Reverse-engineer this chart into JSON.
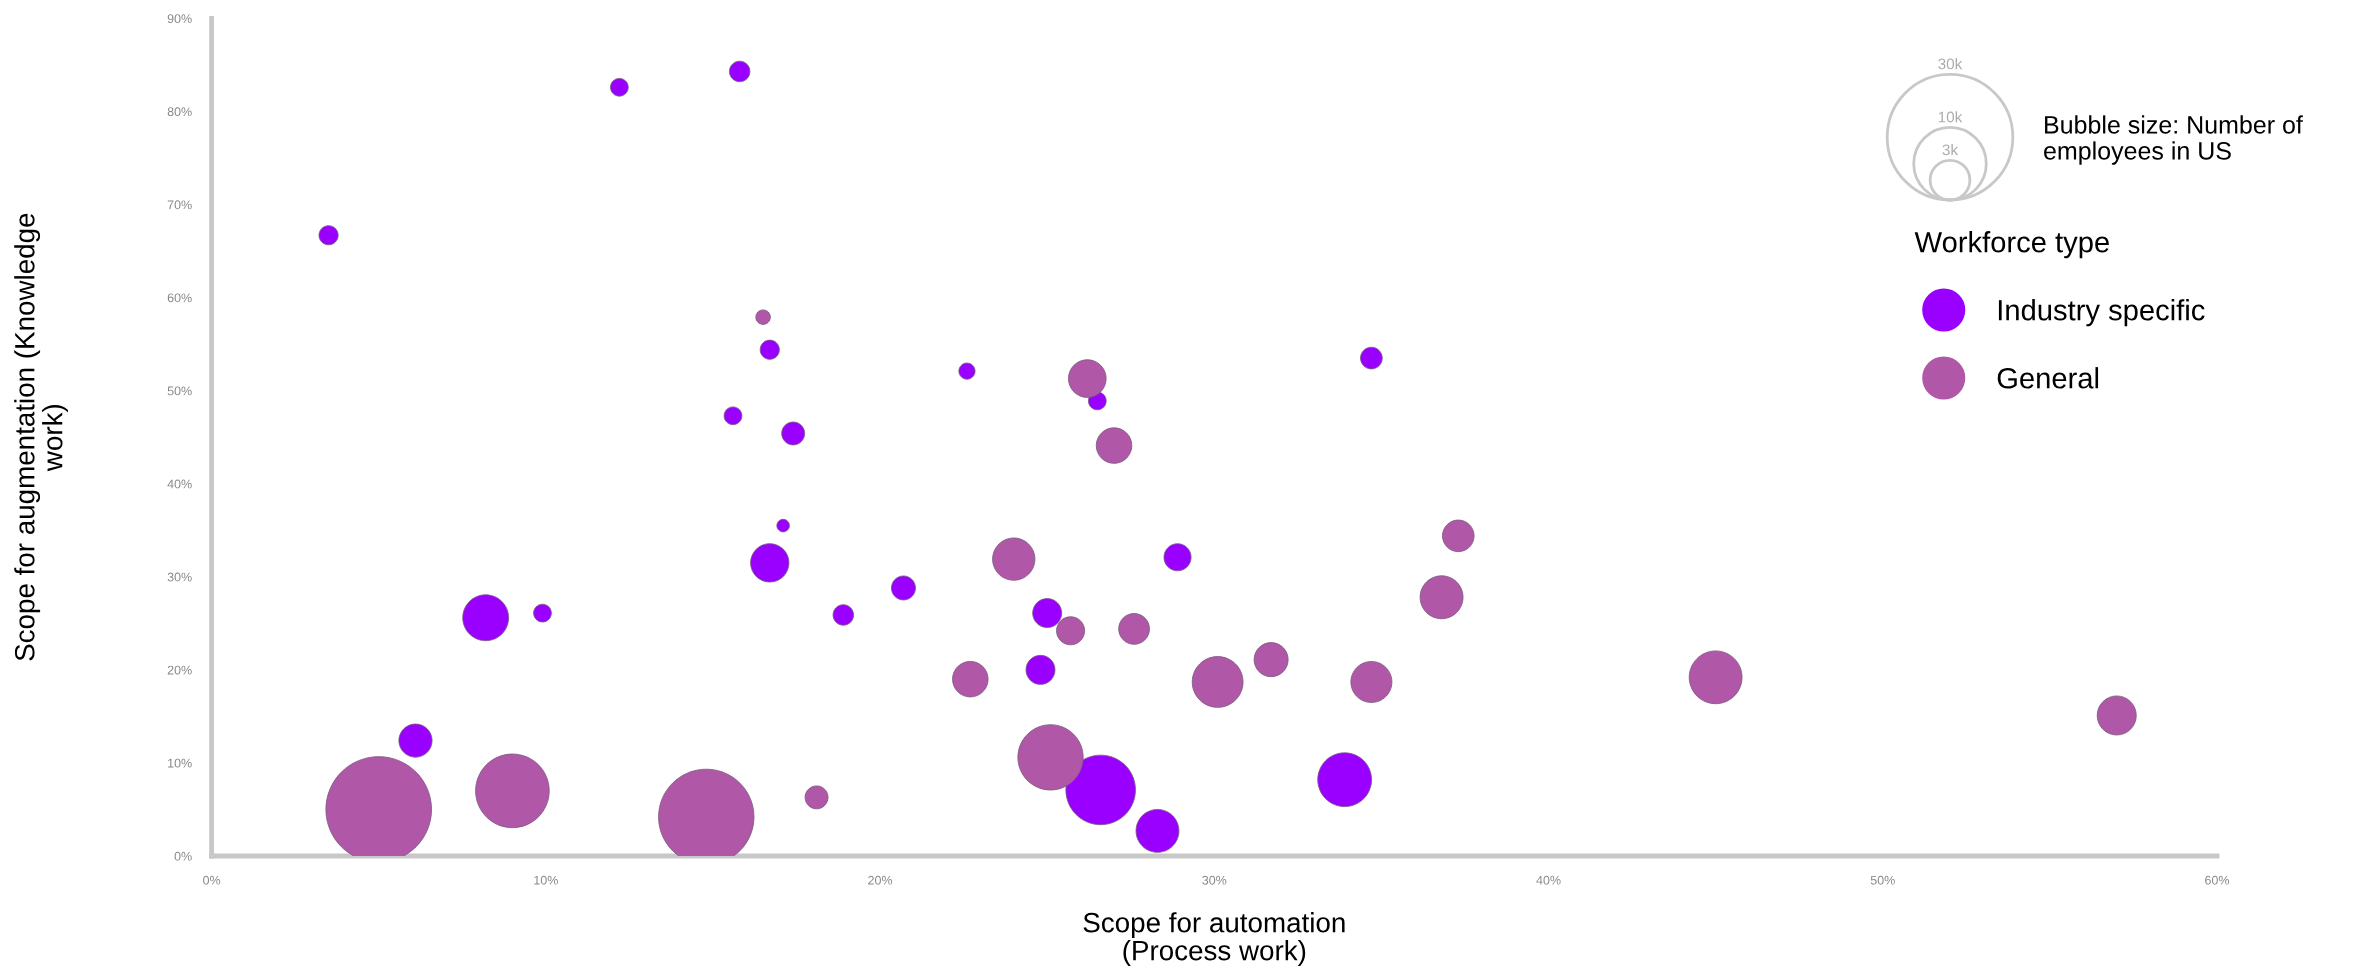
{
  "chart_data": {
    "type": "bubble",
    "xlabel": "Scope for automation\n(Process work)",
    "ylabel": "Scope for augmentation (Knowledge\nwork)",
    "legend_title": "Workforce type",
    "annotations": [
      "Bubble size: Number of\nemployees in US"
    ],
    "xlim": [
      0,
      60
    ],
    "ylim": [
      0,
      90
    ],
    "xticks": [
      {
        "value": 0,
        "label": "0%"
      },
      {
        "value": 10,
        "label": "10%"
      },
      {
        "value": 20,
        "label": "20%"
      },
      {
        "value": 30,
        "label": "30%"
      },
      {
        "value": 40,
        "label": "40%"
      },
      {
        "value": 50,
        "label": "50%"
      },
      {
        "value": 60,
        "label": "60%"
      }
    ],
    "yticks": [
      {
        "value": 0,
        "label": "0%"
      },
      {
        "value": 10,
        "label": "10%"
      },
      {
        "value": 20,
        "label": "20%"
      },
      {
        "value": 30,
        "label": "30%"
      },
      {
        "value": 40,
        "label": "40%"
      },
      {
        "value": 50,
        "label": "50%"
      },
      {
        "value": 60,
        "label": "60%"
      },
      {
        "value": 70,
        "label": "70%"
      },
      {
        "value": 80,
        "label": "80%"
      },
      {
        "value": 90,
        "label": "90%"
      }
    ],
    "size_legend": [
      {
        "value": 30,
        "label": "30k"
      },
      {
        "value": 10,
        "label": "10k"
      },
      {
        "value": 3,
        "label": "3k"
      }
    ],
    "grid": false,
    "legend": "top right",
    "marker": "circle",
    "series": [
      {
        "name": "Industry specific",
        "color": "#9900ff",
        "x": [
          3.5,
          12.2,
          15.8,
          16.7,
          15.6,
          17.4,
          17.1,
          16.7,
          8.2,
          9.9,
          18.9,
          6.1,
          22.6,
          26.5,
          28.9,
          20.7,
          25.0,
          24.8,
          34.7,
          26.6,
          28.3,
          33.9
        ],
        "values": [
          66.7,
          82.6,
          84.3,
          54.4,
          47.3,
          45.4,
          35.5,
          31.5,
          25.6,
          26.1,
          25.9,
          12.4,
          52.1,
          48.9,
          32.1,
          28.8,
          26.1,
          20.0,
          53.5,
          7.1,
          2.7,
          8.2
        ],
        "sizes": [
          0.7,
          0.6,
          0.8,
          0.7,
          0.6,
          1.0,
          0.3,
          2.8,
          4.0,
          0.6,
          0.8,
          2.1,
          0.5,
          0.6,
          1.4,
          1.1,
          1.6,
          1.6,
          0.9,
          9.2,
          3.5,
          5.5
        ]
      },
      {
        "name": "General",
        "color": "#b157a8",
        "x": [
          16.5,
          5.0,
          9.0,
          14.8,
          18.1,
          26.2,
          27.0,
          24.0,
          22.7,
          25.7,
          27.6,
          30.1,
          31.7,
          34.7,
          37.3,
          36.8,
          25.1,
          45.0,
          57.0
        ],
        "values": [
          57.9,
          5.0,
          7.0,
          4.2,
          6.3,
          51.3,
          44.1,
          31.9,
          19.0,
          24.2,
          24.4,
          18.7,
          21.1,
          18.7,
          34.4,
          27.8,
          10.6,
          19.2,
          15.1
        ],
        "sizes": [
          0.4,
          21.2,
          10.3,
          17.3,
          1.0,
          2.7,
          2.4,
          3.4,
          2.4,
          1.5,
          1.8,
          4.9,
          2.2,
          3.2,
          1.9,
          3.5,
          8.1,
          5.3,
          2.9
        ]
      }
    ]
  }
}
